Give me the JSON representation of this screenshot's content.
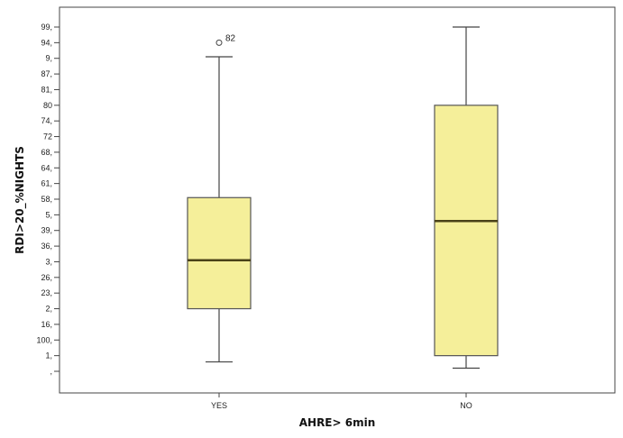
{
  "chart_data": {
    "type": "boxplot",
    "title": "",
    "xlabel": "AHRE> 6min",
    "ylabel": "RDI>20_%NIGHTS",
    "y_tick_labels": [
      "99,",
      "94,",
      "9,",
      "87,",
      "81,",
      "80",
      "74,",
      "72",
      "68,",
      "64,",
      "61,",
      "58,",
      "5,",
      "39,",
      "36,",
      "3,",
      "26,",
      "23,",
      "2,",
      "16,",
      "100,",
      "1,",
      ","
    ],
    "categories": [
      "YES",
      "NO"
    ],
    "ylim": [
      0,
      22
    ],
    "grid": false,
    "legend": "none",
    "box_color": "#f5ef9a",
    "median_color": "#4a4218",
    "boxes": [
      {
        "category": "YES",
        "whisker_low": 0.6,
        "q1": 4.0,
        "median": 7.1,
        "q3": 11.1,
        "whisker_high": 20.1,
        "outliers": [
          {
            "value": 21.0,
            "label": "82"
          }
        ]
      },
      {
        "category": "NO",
        "whisker_low": 0.2,
        "q1": 1.0,
        "median": 9.6,
        "q3": 17.0,
        "whisker_high": 22.0,
        "outliers": []
      }
    ]
  }
}
